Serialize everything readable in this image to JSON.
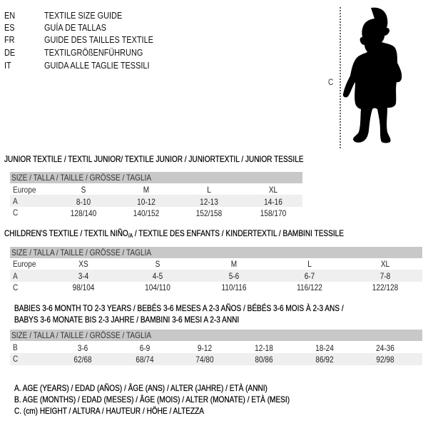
{
  "header": {
    "languages": [
      {
        "code": "EN",
        "label": "TEXTILE SIZE GUIDE"
      },
      {
        "code": "ES",
        "label": "GUÍA DE TALLAS"
      },
      {
        "code": "FR",
        "label": "GUIDE DES TAILLES TEXTILE"
      },
      {
        "code": "DE",
        "label": "TEXTILGRÖßENFÜHRUNG"
      },
      {
        "code": "IT",
        "label": "GUIDA ALLE TAGLIE TESSILI"
      }
    ]
  },
  "figure": {
    "measure_label": "C",
    "icon": "child-silhouette-icon"
  },
  "junior": {
    "title": "JUNIOR TEXTILE / TEXTIL JUNIOR/ TEXTILE JUNIOR / JUNIORTEXTIL / JUNIOR TESSILE",
    "header": "SIZE / TALLA / TAILLE / GRÖSSE / TAGLIA",
    "rows": [
      {
        "label": "Europe",
        "values": [
          "S",
          "M",
          "L",
          "XL"
        ]
      },
      {
        "label": "A",
        "values": [
          "8-10",
          "10-12",
          "12-13",
          "14-16"
        ]
      },
      {
        "label": "C",
        "values": [
          "128/140",
          "140/152",
          "152/158",
          "158/170"
        ]
      }
    ]
  },
  "children": {
    "title": "CHILDREN'S TEXTILE / TEXTIL NIÑO",
    "title_sub": "/A",
    "title_rest": " / TEXTILE DES ENFANTS / KINDERTEXTIL / BAMBINI TESSILE",
    "header": "SIZE / TALLA / TAILLE / GRÖSSE / TAGLIA",
    "rows": [
      {
        "label": "Europe",
        "values": [
          "XS",
          "S",
          "M",
          "L",
          "XL"
        ]
      },
      {
        "label": "A",
        "values": [
          "3-4",
          "4-5",
          "5-6",
          "6-7",
          "7-8"
        ]
      },
      {
        "label": "C",
        "values": [
          "98/104",
          "104/110",
          "110/116",
          "116/122",
          "122/128"
        ]
      }
    ]
  },
  "babies": {
    "title_line1": "BABIES 3-6 MONTH TO 2-3 YEARS / BEBÉS 3-6 MESES A 2-3 AÑOS / BÉBÉS 3-6 MOIS À 2-3 ANS /",
    "title_line2": "BABYS 3-6 MONATE BIS 2-3 JAHRE / BAMBINI 3-6 MESI A 2-3 ANNI",
    "header": "SIZE / TALLA / TAILLE / GRÖSSE / TAGLIA",
    "rows": [
      {
        "label": "B",
        "values": [
          "3-6",
          "6-9",
          "9-12",
          "12-18",
          "18-24",
          "24-36"
        ]
      },
      {
        "label": "C",
        "values": [
          "62/68",
          "68/74",
          "74/80",
          "80/86",
          "86/92",
          "92/98"
        ]
      }
    ]
  },
  "legend": [
    "A. AGE (YEARS) / EDAD (AÑOS) / ÂGE (ANS) / ALTER (JAHRE) / ETÀ (ANNI)",
    "B. AGE (MONTHS) / EDAD (MESES) / ÂGE (MOIS) / ALTER (MONATE) / ETÀ (MESI)",
    "C. (cm) HEIGHT / ALTURA / HAUTEUR / HÖHE / ALTEZZA"
  ]
}
